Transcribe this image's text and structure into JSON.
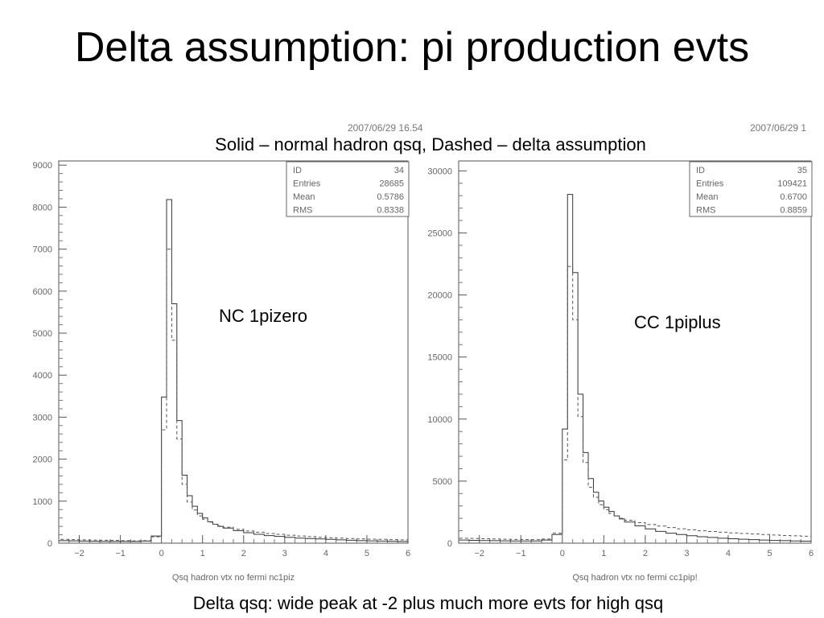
{
  "slide": {
    "title": "Delta assumption: pi production evts",
    "subtitle": "Solid – normal hadron qsq, Dashed – delta assumption",
    "footer": "Delta qsq: wide peak at -2 plus much more evts for high qsq",
    "timestamp_left": "2007/06/29  16.54",
    "timestamp_right": "2007/06/29  1"
  },
  "chart_data": [
    {
      "type": "bar",
      "annotation": "NC 1pizero",
      "xlabel": "Qsq hadron vtx no fermi nc1piz",
      "ylabel": "",
      "xlim": [
        -2.5,
        6
      ],
      "ylim": [
        0,
        9100
      ],
      "xticks": [
        -2,
        -1,
        0,
        1,
        2,
        3,
        4,
        5,
        6
      ],
      "yticks": [
        0,
        1000,
        2000,
        3000,
        4000,
        5000,
        6000,
        7000,
        8000,
        9000
      ],
      "stats": {
        "labels": [
          "ID",
          "Entries",
          "Mean",
          "RMS"
        ],
        "values": [
          "34",
          "28685",
          "0.5786",
          "0.8338"
        ]
      },
      "bin_edges": [
        -2.5,
        -2.25,
        -2.0,
        -1.75,
        -1.5,
        -1.25,
        -1.0,
        -0.75,
        -0.5,
        -0.25,
        0.0,
        0.125,
        0.25,
        0.375,
        0.5,
        0.625,
        0.75,
        0.875,
        1.0,
        1.125,
        1.25,
        1.375,
        1.5,
        1.75,
        2.0,
        2.25,
        2.5,
        2.75,
        3.0,
        3.25,
        3.5,
        3.75,
        4.0,
        4.25,
        4.5,
        4.75,
        5.0,
        5.25,
        5.5,
        5.75,
        6.0
      ],
      "series": [
        {
          "style": "solid",
          "values": [
            60,
            55,
            50,
            45,
            40,
            40,
            40,
            40,
            50,
            170,
            3480,
            8180,
            5700,
            2920,
            1620,
            1130,
            880,
            710,
            600,
            510,
            450,
            400,
            360,
            300,
            250,
            210,
            180,
            160,
            140,
            120,
            110,
            100,
            90,
            80,
            70,
            60,
            55,
            50,
            45,
            40
          ]
        },
        {
          "style": "dashed",
          "values": [
            90,
            85,
            80,
            75,
            70,
            65,
            60,
            55,
            60,
            150,
            2700,
            7000,
            4830,
            2480,
            1400,
            980,
            790,
            650,
            570,
            500,
            450,
            410,
            380,
            330,
            290,
            260,
            230,
            210,
            190,
            170,
            155,
            140,
            130,
            120,
            110,
            100,
            95,
            90,
            85,
            80
          ]
        }
      ]
    },
    {
      "type": "bar",
      "annotation": "CC 1piplus",
      "xlabel": "Qsq hadron vtx no fermi cc1pip!",
      "ylabel": "",
      "xlim": [
        -2.5,
        6
      ],
      "ylim": [
        0,
        30800
      ],
      "xticks": [
        -2,
        -1,
        0,
        1,
        2,
        3,
        4,
        5,
        6
      ],
      "yticks": [
        0,
        5000,
        10000,
        15000,
        20000,
        25000,
        30000
      ],
      "stats": {
        "labels": [
          "ID",
          "Entries",
          "Mean",
          "RMS"
        ],
        "values": [
          "35",
          "109421",
          "0.6700",
          "0.8859"
        ]
      },
      "bin_edges": [
        -2.5,
        -2.25,
        -2.0,
        -1.75,
        -1.5,
        -1.25,
        -1.0,
        -0.75,
        -0.5,
        -0.25,
        0.0,
        0.125,
        0.25,
        0.375,
        0.5,
        0.625,
        0.75,
        0.875,
        1.0,
        1.125,
        1.25,
        1.375,
        1.5,
        1.75,
        2.0,
        2.25,
        2.5,
        2.75,
        3.0,
        3.25,
        3.5,
        3.75,
        4.0,
        4.25,
        4.5,
        4.75,
        5.0,
        5.25,
        5.5,
        5.75,
        6.0
      ],
      "series": [
        {
          "style": "solid",
          "values": [
            250,
            230,
            210,
            200,
            190,
            180,
            180,
            180,
            250,
            700,
            9200,
            28100,
            21800,
            12000,
            7300,
            5200,
            4100,
            3400,
            2900,
            2550,
            2200,
            1950,
            1700,
            1400,
            1150,
            950,
            800,
            700,
            600,
            520,
            460,
            400,
            360,
            320,
            280,
            250,
            220,
            200,
            180,
            160
          ]
        },
        {
          "style": "dashed",
          "values": [
            400,
            380,
            360,
            340,
            320,
            300,
            290,
            280,
            330,
            800,
            6700,
            22300,
            18000,
            10200,
            6500,
            4500,
            3700,
            3100,
            2700,
            2400,
            2200,
            2000,
            1850,
            1650,
            1500,
            1380,
            1260,
            1160,
            1080,
            1000,
            940,
            880,
            830,
            780,
            740,
            700,
            660,
            620,
            590,
            560
          ]
        }
      ]
    }
  ]
}
